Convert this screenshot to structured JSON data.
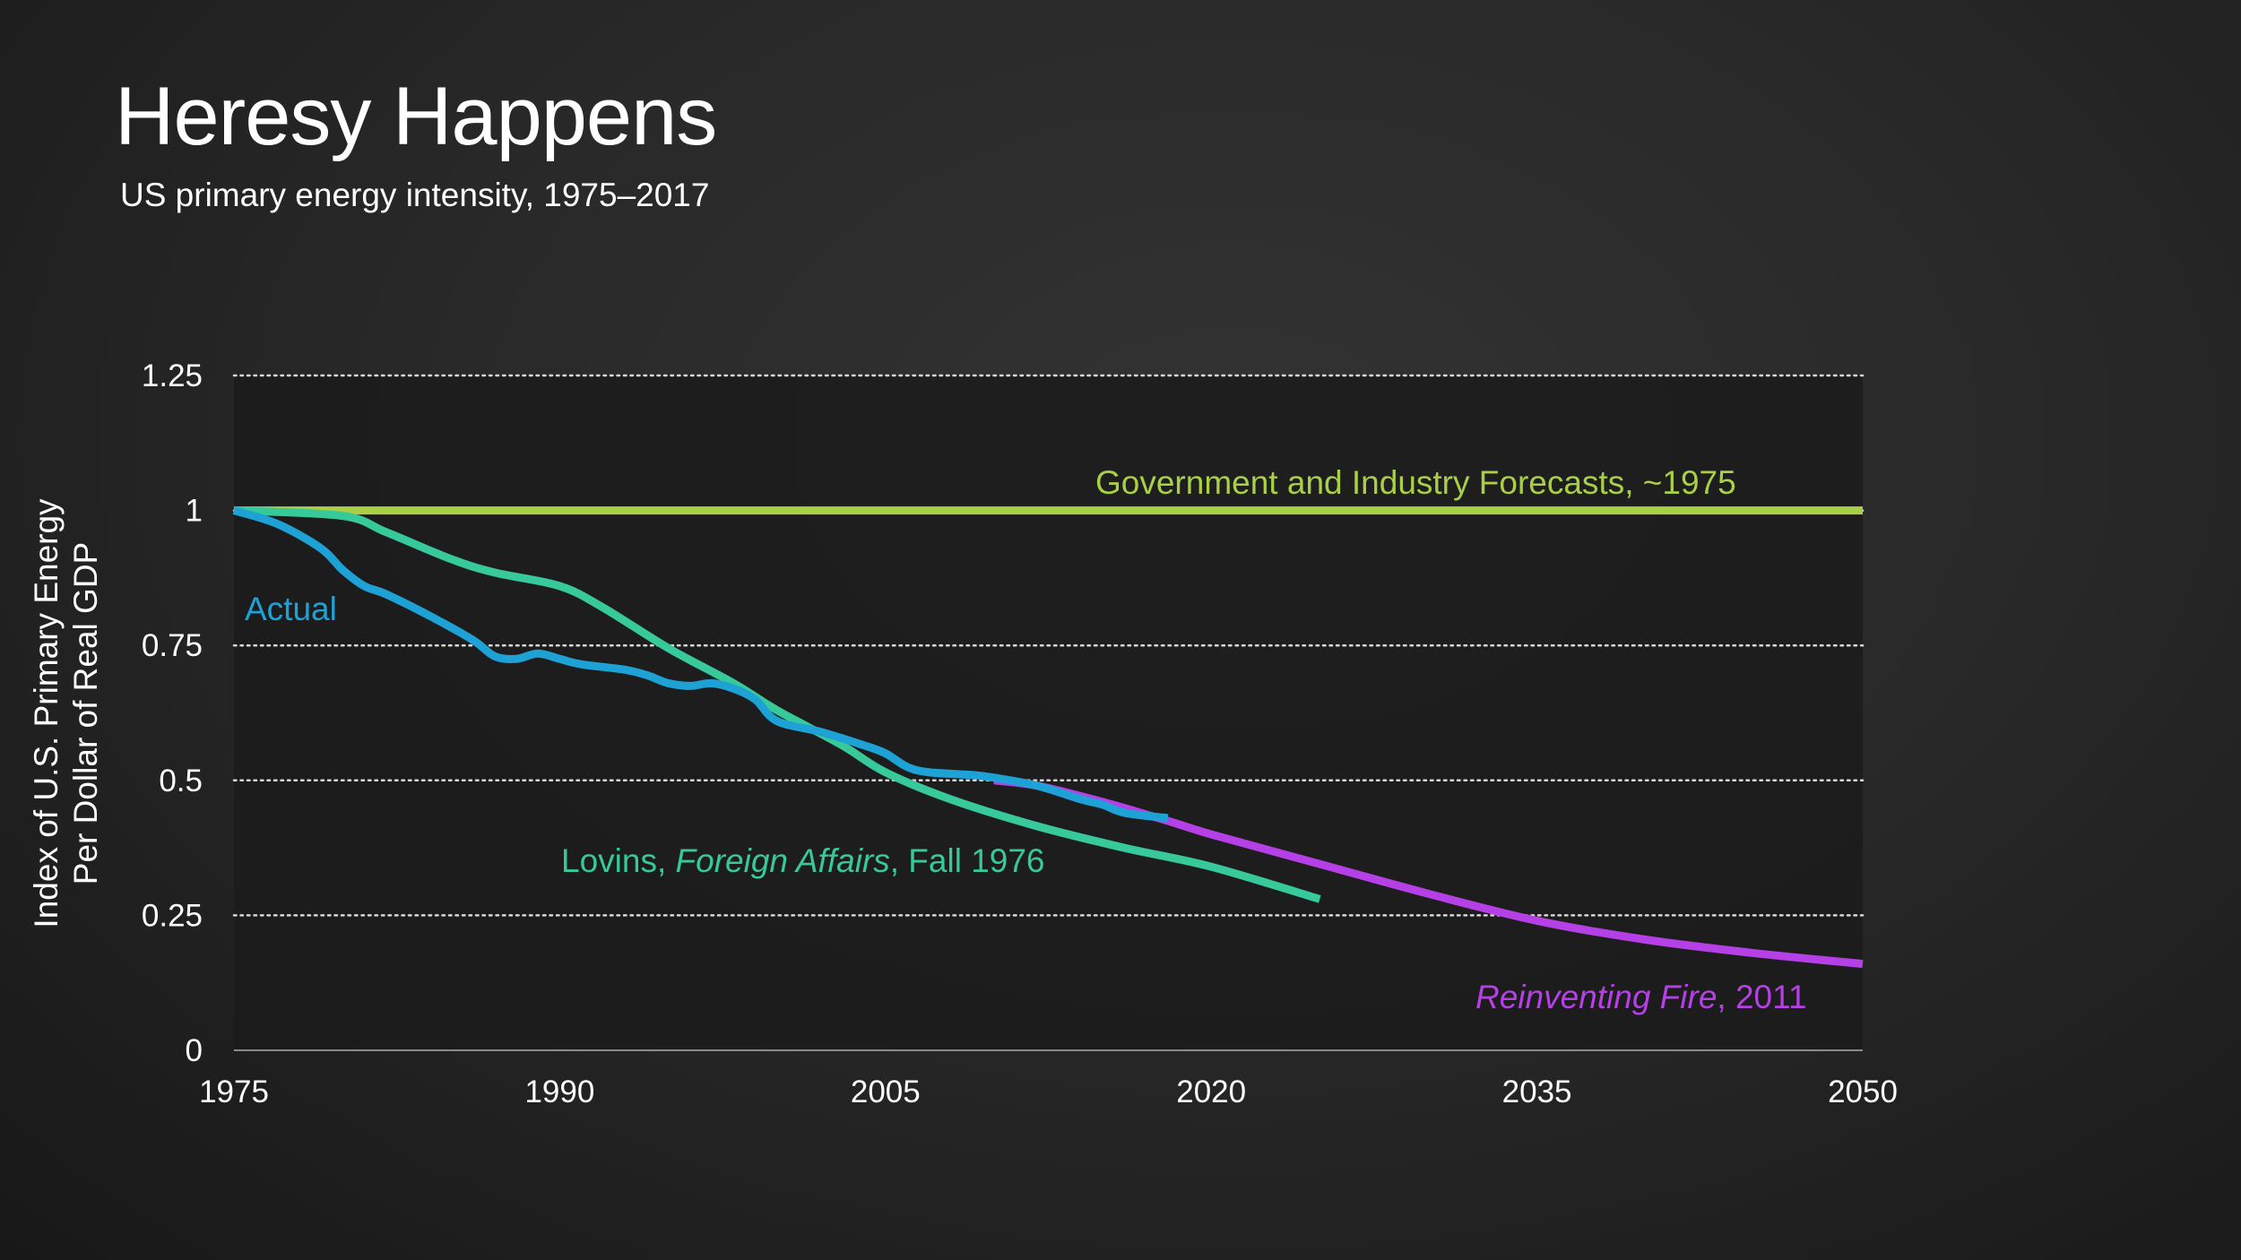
{
  "title": "Heresy Happens",
  "subtitle": "US primary energy intensity, 1975–2017",
  "colors": {
    "forecast": "#a9cf47",
    "actual": "#1ea2d6",
    "lovins": "#37c99a",
    "reinventing": "#b440e6",
    "plot_background": "#1b1b1b",
    "grid": "#d8d8d8"
  },
  "chart_data": {
    "type": "line",
    "title": "Heresy Happens",
    "subtitle": "US primary energy intensity, 1975–2017",
    "ylabel": [
      "Index of U.S. Primary Energy",
      "Per Dollar of Real GDP"
    ],
    "xlabel": "",
    "xlim": [
      1975,
      2050
    ],
    "ylim": [
      0,
      1.25
    ],
    "x_ticks": [
      1975,
      1990,
      2005,
      2020,
      2035,
      2050
    ],
    "x_tick_labels": [
      "1975",
      "1990",
      "2005",
      "2020",
      "2035",
      "2050"
    ],
    "y_ticks": [
      0,
      0.25,
      0.5,
      0.75,
      1,
      1.25
    ],
    "y_tick_labels": [
      "0",
      "0.25",
      "0.5",
      "0.75",
      "1",
      "1.25"
    ],
    "grid": "horizontal dotted",
    "legend": "inline labels",
    "series": [
      {
        "key": "forecast",
        "label": "Government and Industry Forecasts, ~1975",
        "points": [
          [
            1975,
            1.0
          ],
          [
            2050,
            1.0
          ]
        ]
      },
      {
        "key": "reinventing",
        "label_italic": "Reinventing Fire",
        "label_rest": ", 2011",
        "points": [
          [
            2010,
            0.5
          ],
          [
            2012,
            0.49
          ],
          [
            2015,
            0.46
          ],
          [
            2018,
            0.425
          ],
          [
            2020,
            0.4
          ],
          [
            2025,
            0.345
          ],
          [
            2030,
            0.29
          ],
          [
            2035,
            0.24
          ],
          [
            2040,
            0.205
          ],
          [
            2045,
            0.18
          ],
          [
            2050,
            0.16
          ]
        ]
      },
      {
        "key": "lovins",
        "label_pre": "Lovins, ",
        "label_italic": "Foreign Affairs",
        "label_rest": ", Fall 1976",
        "points": [
          [
            1975,
            1.0
          ],
          [
            1980,
            0.99
          ],
          [
            1982,
            0.96
          ],
          [
            1985,
            0.91
          ],
          [
            1987,
            0.885
          ],
          [
            1990,
            0.86
          ],
          [
            1992,
            0.82
          ],
          [
            1995,
            0.745
          ],
          [
            1998,
            0.68
          ],
          [
            2000,
            0.63
          ],
          [
            2003,
            0.565
          ],
          [
            2005,
            0.515
          ],
          [
            2008,
            0.465
          ],
          [
            2012,
            0.415
          ],
          [
            2016,
            0.375
          ],
          [
            2020,
            0.34
          ],
          [
            2025,
            0.28
          ]
        ]
      },
      {
        "key": "actual",
        "label": "Actual",
        "points": [
          [
            1975,
            1.0
          ],
          [
            1977,
            0.975
          ],
          [
            1979,
            0.93
          ],
          [
            1980,
            0.89
          ],
          [
            1981,
            0.86
          ],
          [
            1982,
            0.845
          ],
          [
            1984,
            0.805
          ],
          [
            1986,
            0.76
          ],
          [
            1987,
            0.73
          ],
          [
            1988,
            0.725
          ],
          [
            1989,
            0.735
          ],
          [
            1990,
            0.725
          ],
          [
            1991,
            0.715
          ],
          [
            1993,
            0.705
          ],
          [
            1994,
            0.695
          ],
          [
            1995,
            0.68
          ],
          [
            1996,
            0.675
          ],
          [
            1997,
            0.68
          ],
          [
            1998,
            0.67
          ],
          [
            1999,
            0.65
          ],
          [
            2000,
            0.61
          ],
          [
            2002,
            0.59
          ],
          [
            2004,
            0.565
          ],
          [
            2005,
            0.55
          ],
          [
            2006,
            0.525
          ],
          [
            2007,
            0.515
          ],
          [
            2009,
            0.51
          ],
          [
            2010,
            0.505
          ],
          [
            2012,
            0.49
          ],
          [
            2014,
            0.465
          ],
          [
            2015,
            0.455
          ],
          [
            2016,
            0.44
          ],
          [
            2018,
            0.43
          ]
        ]
      }
    ]
  }
}
